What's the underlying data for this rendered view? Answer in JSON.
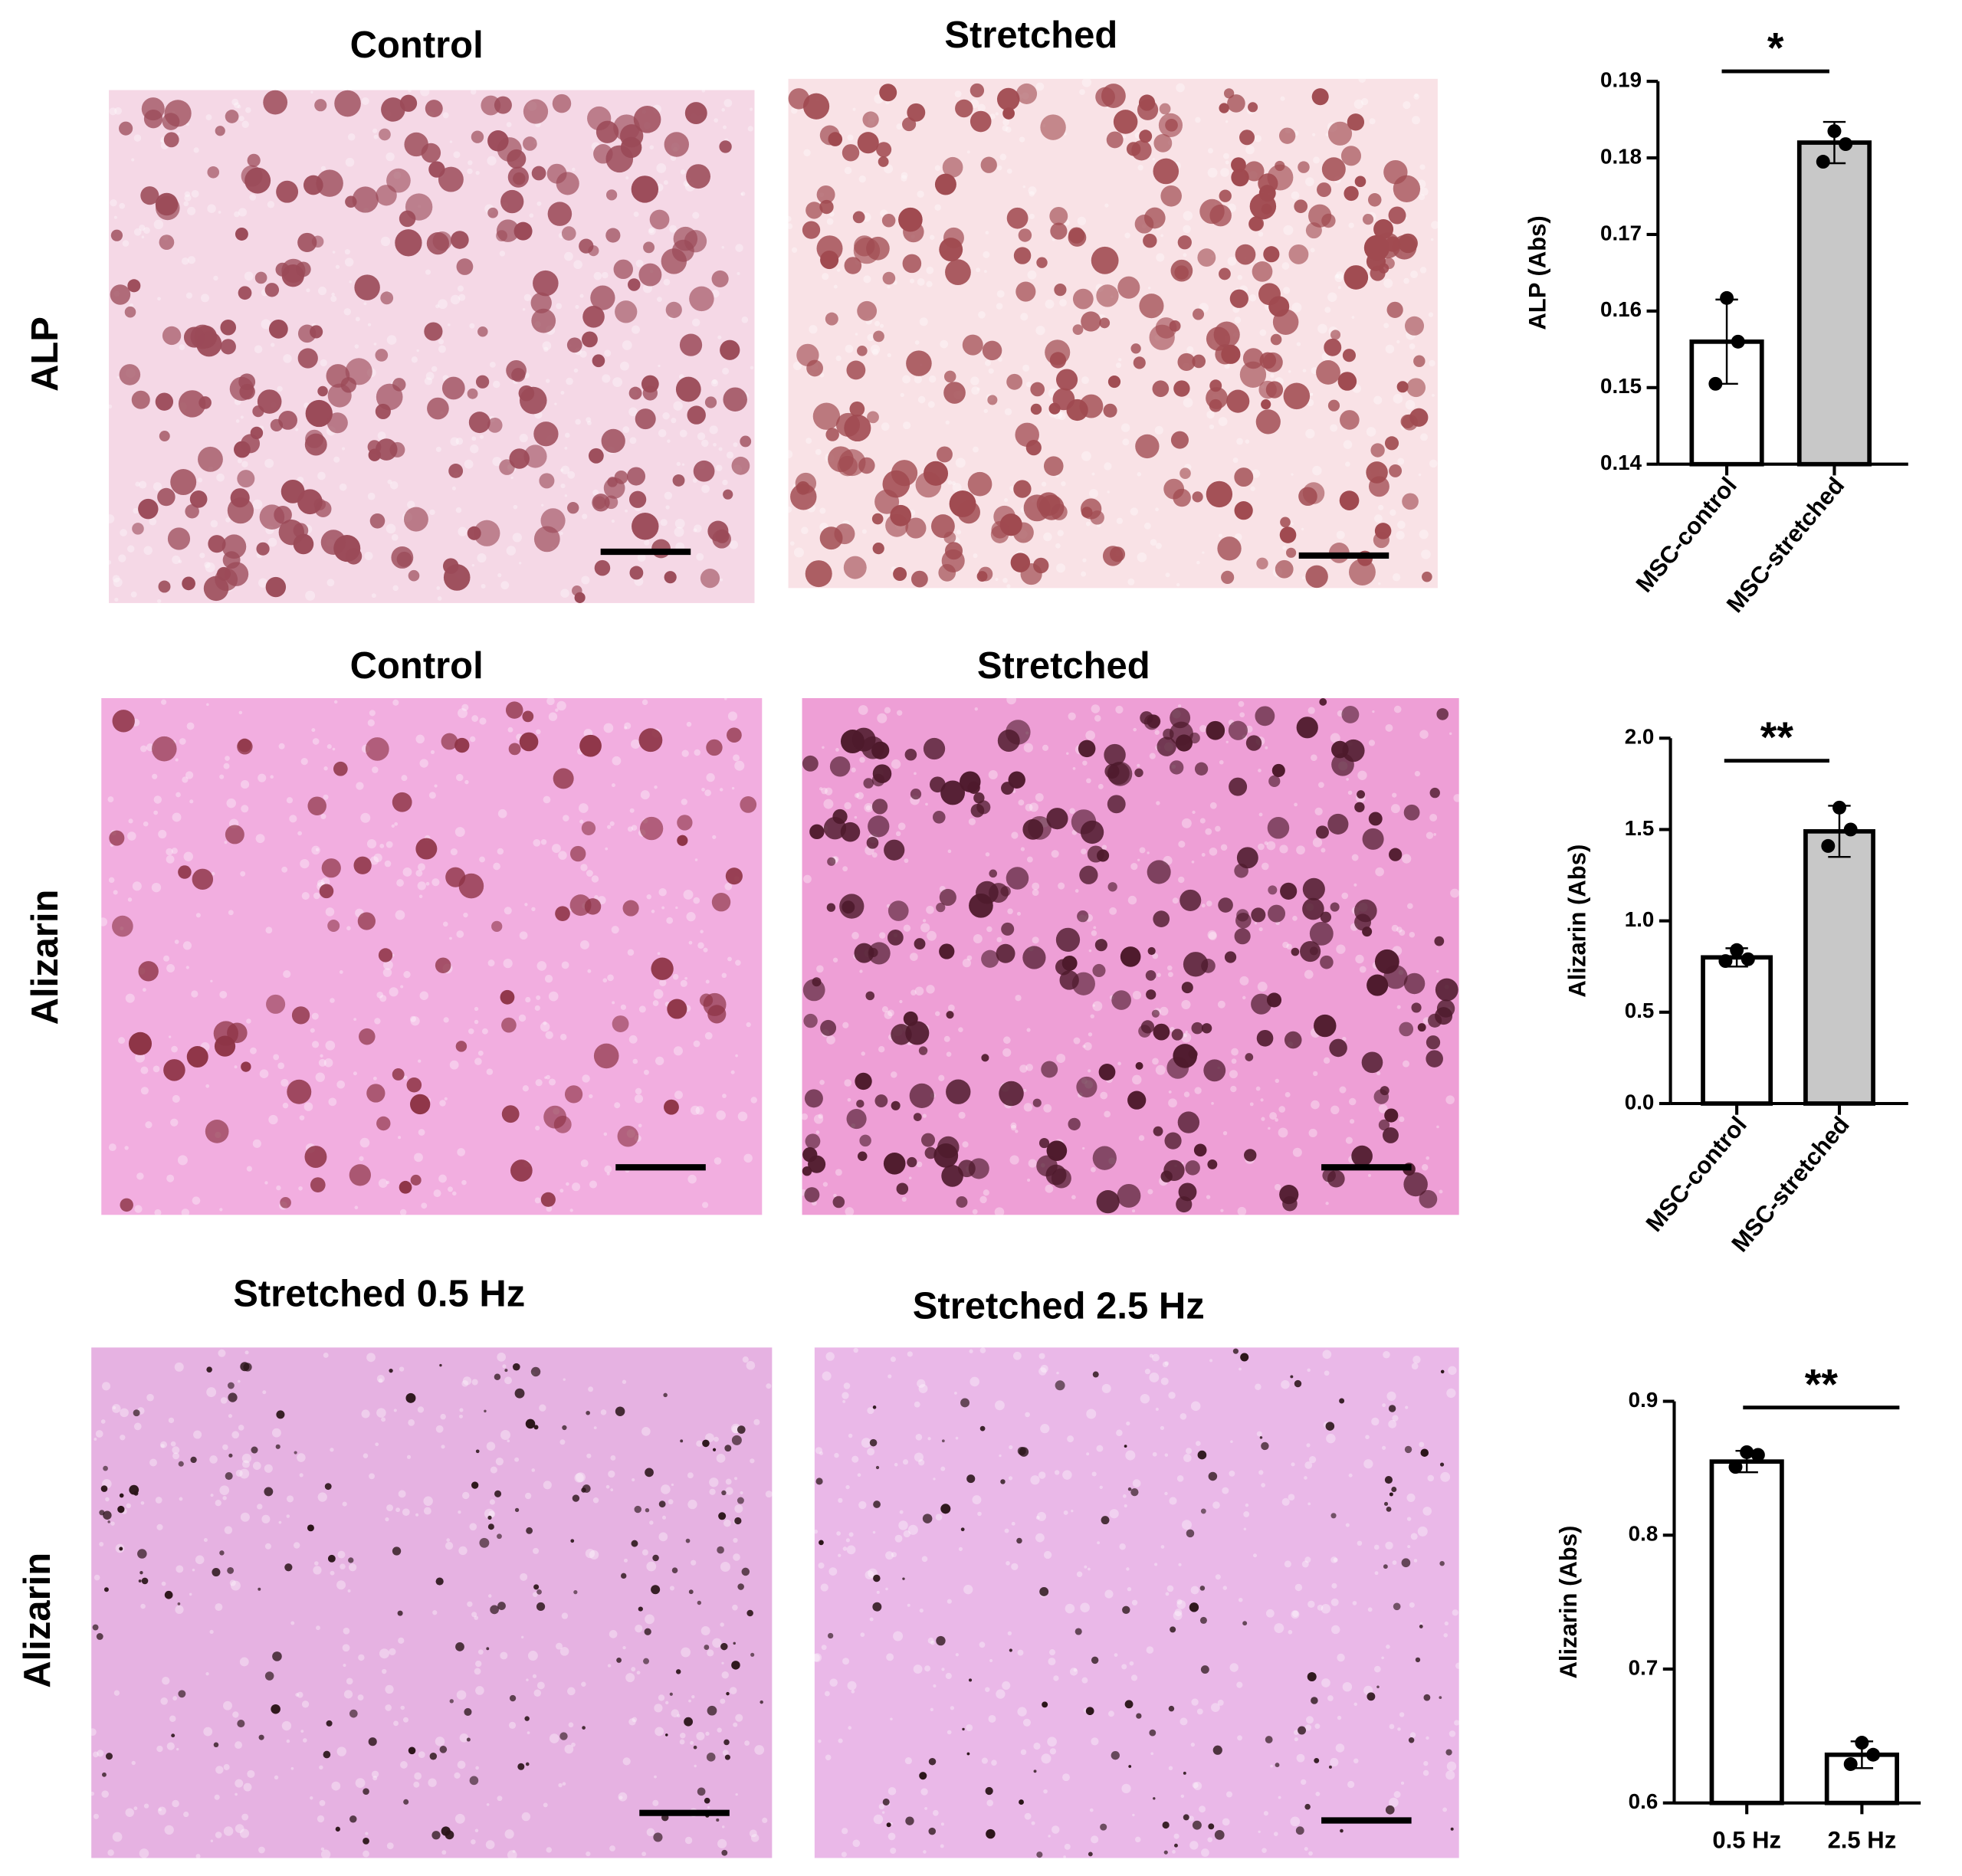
{
  "panels": [
    {
      "row_label": "ALP",
      "images": [
        {
          "title": "Control"
        },
        {
          "title": "Stretched"
        }
      ]
    },
    {
      "row_label": "Alizarin",
      "images": [
        {
          "title": "Control"
        },
        {
          "title": "Stretched"
        }
      ]
    },
    {
      "row_label": "Alizarin",
      "images": [
        {
          "title": "Stretched 0.5 Hz"
        },
        {
          "title": "Stretched 2.5 Hz"
        }
      ]
    }
  ],
  "chart_data": [
    {
      "type": "bar",
      "y_label": "ALP (Abs)",
      "categories": [
        "MSC-control",
        "MSC-stretched"
      ],
      "values": [
        0.156,
        0.182
      ],
      "errors": [
        0.0055,
        0.0027
      ],
      "points": [
        [
          0.1617,
          0.156,
          0.1505
        ],
        [
          0.1835,
          0.1818,
          0.1795
        ]
      ],
      "colors": [
        "#ffffff",
        "#c8c8c8"
      ],
      "annotation": "*",
      "ylim": [
        0.14,
        0.19
      ],
      "yticks": [
        0.14,
        0.15,
        0.16,
        0.17,
        0.18,
        0.19
      ]
    },
    {
      "type": "bar",
      "y_label": "Alizarin (Abs)",
      "categories": [
        "MSC-control",
        "MSC-stretched"
      ],
      "values": [
        0.8,
        1.49
      ],
      "errors": [
        0.05,
        0.14
      ],
      "points": [
        [
          0.84,
          0.79,
          0.78
        ],
        [
          1.62,
          1.5,
          1.41
        ]
      ],
      "colors": [
        "#ffffff",
        "#c8c8c8"
      ],
      "annotation": "**",
      "ylim": [
        0,
        2
      ],
      "yticks": [
        {
          "value": 0,
          "label": "0.0"
        },
        0.5,
        {
          "value": 1,
          "label": "1.0"
        },
        1.5,
        {
          "value": 2,
          "label": "2.0"
        }
      ]
    },
    {
      "type": "bar",
      "y_label": "Alizarin (Abs)",
      "categories": [
        "0.5 Hz",
        "2.5 Hz"
      ],
      "values": [
        0.855,
        0.636
      ],
      "errors": [
        0.008,
        0.01
      ],
      "points": [
        [
          0.862,
          0.86,
          0.851
        ],
        [
          0.645,
          0.636,
          0.629
        ]
      ],
      "colors": [
        "#ffffff",
        "#ffffff"
      ],
      "annotation": "**",
      "ylim": [
        0.6,
        0.9
      ],
      "yticks": [
        0.6,
        0.7,
        0.8,
        0.9
      ]
    }
  ]
}
